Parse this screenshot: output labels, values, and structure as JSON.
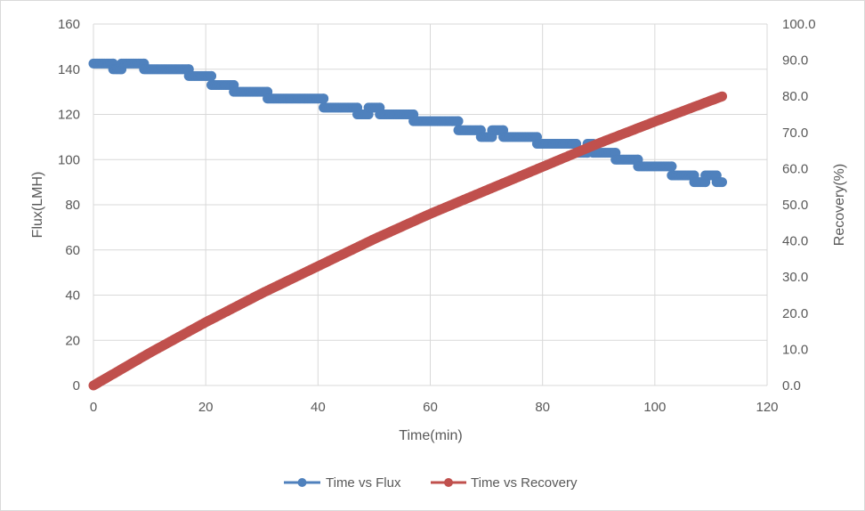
{
  "chart_data": {
    "type": "scatter",
    "title": "",
    "xlabel": "Time(min)",
    "ylabel": "Flux(LMH)",
    "y2label": "Recovery(%)",
    "xlim": [
      0,
      120
    ],
    "ylim": [
      0,
      160
    ],
    "y2lim": [
      0,
      100
    ],
    "x_ticks": [
      "0",
      "20",
      "40",
      "60",
      "80",
      "100",
      "120"
    ],
    "y_ticks": [
      "0",
      "20",
      "40",
      "60",
      "80",
      "100",
      "120",
      "140",
      "160"
    ],
    "y2_ticks": [
      "0.0",
      "10.0",
      "20.0",
      "30.0",
      "40.0",
      "50.0",
      "60.0",
      "70.0",
      "80.0",
      "90.0",
      "100.0"
    ],
    "grid": true,
    "legend_position": "bottom",
    "colors": {
      "flux": "#4f81bd",
      "recovery": "#c0504d",
      "grid": "#d9d9d9"
    },
    "series": [
      {
        "name": "Time vs Flux",
        "axis": "left",
        "steps": [
          {
            "x0": 0,
            "x1": 3.5,
            "y": 142.5
          },
          {
            "x0": 3.5,
            "x1": 5,
            "y": 140
          },
          {
            "x0": 5,
            "x1": 9,
            "y": 142.5
          },
          {
            "x0": 9,
            "x1": 17,
            "y": 140
          },
          {
            "x0": 17,
            "x1": 21,
            "y": 137
          },
          {
            "x0": 21,
            "x1": 25,
            "y": 133
          },
          {
            "x0": 25,
            "x1": 31,
            "y": 130
          },
          {
            "x0": 31,
            "x1": 41,
            "y": 127
          },
          {
            "x0": 41,
            "x1": 47,
            "y": 123
          },
          {
            "x0": 47,
            "x1": 49,
            "y": 120
          },
          {
            "x0": 49,
            "x1": 51,
            "y": 123
          },
          {
            "x0": 51,
            "x1": 57,
            "y": 120
          },
          {
            "x0": 57,
            "x1": 65,
            "y": 117
          },
          {
            "x0": 65,
            "x1": 69,
            "y": 113
          },
          {
            "x0": 69,
            "x1": 71,
            "y": 110
          },
          {
            "x0": 71,
            "x1": 73,
            "y": 113
          },
          {
            "x0": 73,
            "x1": 79,
            "y": 110
          },
          {
            "x0": 79,
            "x1": 86,
            "y": 107
          },
          {
            "x0": 86,
            "x1": 88,
            "y": 103
          },
          {
            "x0": 88,
            "x1": 89,
            "y": 107
          },
          {
            "x0": 89,
            "x1": 93,
            "y": 103
          },
          {
            "x0": 93,
            "x1": 97,
            "y": 100
          },
          {
            "x0": 97,
            "x1": 103,
            "y": 97
          },
          {
            "x0": 103,
            "x1": 107,
            "y": 93
          },
          {
            "x0": 107,
            "x1": 109,
            "y": 90
          },
          {
            "x0": 109,
            "x1": 111,
            "y": 93
          },
          {
            "x0": 111,
            "x1": 112,
            "y": 90
          }
        ]
      },
      {
        "name": "Time vs Recovery",
        "axis": "right",
        "x": [
          0,
          10,
          20,
          30,
          40,
          50,
          60,
          70,
          80,
          90,
          100,
          112
        ],
        "values": [
          0,
          9,
          17.5,
          25.5,
          33,
          40.5,
          47.5,
          54,
          60.5,
          67,
          73,
          80
        ]
      }
    ]
  }
}
